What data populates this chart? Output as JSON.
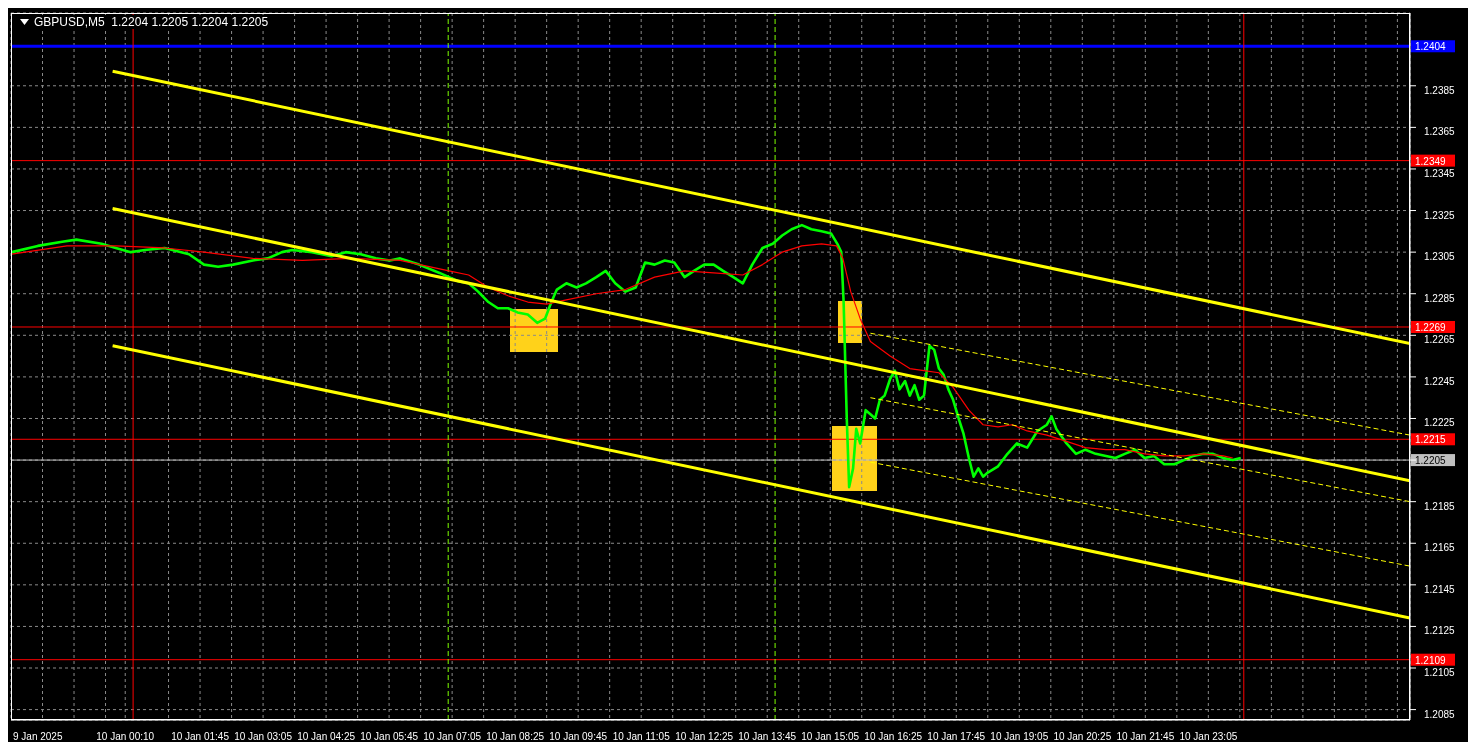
{
  "chart_data": {
    "type": "line",
    "title": "GBPUSD,M5  1.2204 1.2205 1.2204 1.2205",
    "xlim": [
      "2025-01-09T21:45",
      "2025-01-11T03:21"
    ],
    "ylim": [
      1.208,
      1.242
    ],
    "xticks": [
      {
        "value": "2025-01-09T21:45",
        "label": "9 Jan 2025"
      },
      {
        "value": "2025-01-09T22:25",
        "label": null
      },
      {
        "value": "2025-01-09T23:05",
        "label": null
      },
      {
        "value": "2025-01-09T23:45",
        "label": null
      },
      {
        "value": "2025-01-10T00:10",
        "label": "10 Jan 00:10"
      },
      {
        "value": "2025-01-10T01:05",
        "label": null
      },
      {
        "value": "2025-01-10T01:45",
        "label": "10 Jan 01:45"
      },
      {
        "value": "2025-01-10T02:25",
        "label": null
      },
      {
        "value": "2025-01-10T03:05",
        "label": "10 Jan 03:05"
      },
      {
        "value": "2025-01-10T03:45",
        "label": null
      },
      {
        "value": "2025-01-10T04:25",
        "label": "10 Jan 04:25"
      },
      {
        "value": "2025-01-10T05:05",
        "label": null
      },
      {
        "value": "2025-01-10T05:45",
        "label": "10 Jan 05:45"
      },
      {
        "value": "2025-01-10T06:25",
        "label": null
      },
      {
        "value": "2025-01-10T07:05",
        "label": "10 Jan 07:05"
      },
      {
        "value": "2025-01-10T07:45",
        "label": null
      },
      {
        "value": "2025-01-10T08:25",
        "label": "10 Jan 08:25"
      },
      {
        "value": "2025-01-10T09:05",
        "label": null
      },
      {
        "value": "2025-01-10T09:45",
        "label": "10 Jan 09:45"
      },
      {
        "value": "2025-01-10T10:25",
        "label": null
      },
      {
        "value": "2025-01-10T11:05",
        "label": "10 Jan 11:05"
      },
      {
        "value": "2025-01-10T11:45",
        "label": null
      },
      {
        "value": "2025-01-10T12:25",
        "label": "10 Jan 12:25"
      },
      {
        "value": "2025-01-10T13:05",
        "label": null
      },
      {
        "value": "2025-01-10T13:45",
        "label": "10 Jan 13:45"
      },
      {
        "value": "2025-01-10T14:25",
        "label": null
      },
      {
        "value": "2025-01-10T15:05",
        "label": "10 Jan 15:05"
      },
      {
        "value": "2025-01-10T15:45",
        "label": null
      },
      {
        "value": "2025-01-10T16:25",
        "label": "10 Jan 16:25"
      },
      {
        "value": "2025-01-10T17:05",
        "label": null
      },
      {
        "value": "2025-01-10T17:45",
        "label": "10 Jan 17:45"
      },
      {
        "value": "2025-01-10T18:25",
        "label": null
      },
      {
        "value": "2025-01-10T19:05",
        "label": "10 Jan 19:05"
      },
      {
        "value": "2025-01-10T19:45",
        "label": null
      },
      {
        "value": "2025-01-10T20:25",
        "label": "10 Jan 20:25"
      },
      {
        "value": "2025-01-10T21:05",
        "label": null
      },
      {
        "value": "2025-01-10T21:45",
        "label": "10 Jan 21:45"
      },
      {
        "value": "2025-01-10T22:25",
        "label": null
      },
      {
        "value": "2025-01-10T23:05",
        "label": "10 Jan 23:05"
      },
      {
        "value": "2025-01-10T23:45",
        "label": null
      },
      {
        "value": "2025-01-11T00:25",
        "label": null
      },
      {
        "value": "2025-01-11T01:05",
        "label": null
      },
      {
        "value": "2025-01-11T01:45",
        "label": null
      },
      {
        "value": "2025-01-11T02:25",
        "label": null
      },
      {
        "value": "2025-01-11T03:05",
        "label": null
      }
    ],
    "yticks": [
      1.2085,
      1.2105,
      1.2125,
      1.2145,
      1.2165,
      1.2185,
      {
        "value": 1.2205,
        "label": null
      },
      1.2225,
      1.2245,
      1.2265,
      1.2285,
      1.2305,
      1.2325,
      1.2345,
      1.2365,
      1.2385
    ],
    "grid": true,
    "series": [
      {
        "color": "#00ff00",
        "x": [
          "2025-01-09T21:46",
          "2025-01-09T22:19",
          "2025-01-09T22:50",
          "2025-01-09T23:08",
          "2025-01-09T23:40",
          "2025-01-09T23:58",
          "2025-01-10T00:17",
          "2025-01-10T00:35",
          "2025-01-10T01:00",
          "2025-01-10T01:31",
          "2025-01-10T01:50",
          "2025-01-10T02:08",
          "2025-01-10T02:27",
          "2025-01-10T02:52",
          "2025-01-10T03:11",
          "2025-01-10T03:29",
          "2025-01-10T03:42",
          "2025-01-10T04:07",
          "2025-01-10T04:32",
          "2025-01-10T04:50",
          "2025-01-10T05:09",
          "2025-01-10T05:28",
          "2025-01-10T05:46",
          "2025-01-10T05:59",
          "2025-01-10T06:23",
          "2025-01-10T06:49",
          "2025-01-10T07:01",
          "2025-01-10T07:13",
          "2025-01-10T07:26",
          "2025-01-10T07:38",
          "2025-01-10T07:51",
          "2025-01-10T08:03",
          "2025-01-10T08:16",
          "2025-01-10T08:28",
          "2025-01-10T08:41",
          "2025-01-10T08:53",
          "2025-01-10T09:03",
          "2025-01-10T09:11",
          "2025-01-10T09:18",
          "2025-01-10T09:30",
          "2025-01-10T09:43",
          "2025-01-10T09:55",
          "2025-01-10T10:08",
          "2025-01-10T10:20",
          "2025-01-10T10:32",
          "2025-01-10T10:45",
          "2025-01-10T10:58",
          "2025-01-10T11:10",
          "2025-01-10T11:22",
          "2025-01-10T11:35",
          "2025-01-10T11:47",
          "2025-01-10T12:00",
          "2025-01-10T12:12",
          "2025-01-10T12:25",
          "2025-01-10T12:37",
          "2025-01-10T12:49",
          "2025-01-10T13:02",
          "2025-01-10T13:14",
          "2025-01-10T13:26",
          "2025-01-10T13:39",
          "2025-01-10T13:52",
          "2025-01-10T14:04",
          "2025-01-10T14:16",
          "2025-01-10T14:29",
          "2025-01-10T14:41",
          "2025-01-10T14:54",
          "2025-01-10T15:06",
          "2025-01-10T15:14",
          "2025-01-10T15:19",
          "2025-01-10T15:22",
          "2025-01-10T15:26",
          "2025-01-10T15:29",
          "2025-01-10T15:34",
          "2025-01-10T15:38",
          "2025-01-10T15:43",
          "2025-01-10T15:50",
          "2025-01-10T15:56",
          "2025-01-10T16:02",
          "2025-01-10T16:08",
          "2025-01-10T16:14",
          "2025-01-10T16:21",
          "2025-01-10T16:27",
          "2025-01-10T16:33",
          "2025-01-10T16:40",
          "2025-01-10T16:46",
          "2025-01-10T16:52",
          "2025-01-10T16:58",
          "2025-01-10T17:04",
          "2025-01-10T17:11",
          "2025-01-10T17:17",
          "2025-01-10T17:23",
          "2025-01-10T17:29",
          "2025-01-10T17:35",
          "2025-01-10T17:41",
          "2025-01-10T17:48",
          "2025-01-10T17:54",
          "2025-01-10T18:01",
          "2025-01-10T18:07",
          "2025-01-10T18:13",
          "2025-01-10T18:19",
          "2025-01-10T18:25",
          "2025-01-10T18:38",
          "2025-01-10T18:50",
          "2025-01-10T19:02",
          "2025-01-10T19:15",
          "2025-01-10T19:28",
          "2025-01-10T19:40",
          "2025-01-10T19:46",
          "2025-01-10T19:52",
          "2025-01-10T20:05",
          "2025-01-10T20:17",
          "2025-01-10T20:29",
          "2025-01-10T20:42",
          "2025-01-10T20:55",
          "2025-01-10T21:07",
          "2025-01-10T21:19",
          "2025-01-10T21:32",
          "2025-01-10T21:44",
          "2025-01-10T21:56",
          "2025-01-10T22:09",
          "2025-01-10T22:22",
          "2025-01-10T22:34",
          "2025-01-10T22:46",
          "2025-01-10T22:59",
          "2025-01-10T23:11",
          "2025-01-10T23:24",
          "2025-01-10T23:36",
          "2025-01-10T23:46"
        ],
        "values": [
          1.2305,
          1.2308,
          1.231,
          1.2311,
          1.2309,
          1.2307,
          1.2305,
          1.2306,
          1.2307,
          1.2304,
          1.2299,
          1.2298,
          1.2299,
          1.2301,
          1.2302,
          1.2305,
          1.2306,
          1.2305,
          1.2303,
          1.2305,
          1.2304,
          1.2302,
          1.2301,
          1.2302,
          1.2299,
          1.2295,
          1.2293,
          1.2291,
          1.229,
          1.2286,
          1.2281,
          1.2278,
          1.2278,
          1.2276,
          1.2275,
          1.2271,
          1.2273,
          1.2281,
          1.2287,
          1.229,
          1.2288,
          1.229,
          1.2293,
          1.2296,
          1.229,
          1.2286,
          1.2288,
          1.23,
          1.2299,
          1.2301,
          1.23,
          1.2293,
          1.2296,
          1.2299,
          1.2299,
          1.2296,
          1.2293,
          1.229,
          1.2299,
          1.2307,
          1.2309,
          1.2313,
          1.2316,
          1.2318,
          1.2316,
          1.2315,
          1.2314,
          1.2309,
          1.2305,
          1.2281,
          1.2225,
          1.2192,
          1.2201,
          1.222,
          1.2213,
          1.2229,
          1.2227,
          1.2225,
          1.2234,
          1.2236,
          1.2244,
          1.2248,
          1.2239,
          1.2243,
          1.2236,
          1.2241,
          1.2234,
          1.2236,
          1.226,
          1.2258,
          1.2249,
          1.2246,
          1.2239,
          1.2234,
          1.2225,
          1.2218,
          1.2206,
          1.2197,
          1.2201,
          1.2197,
          1.2199,
          1.2202,
          1.2208,
          1.2213,
          1.2211,
          1.2219,
          1.2222,
          1.2226,
          1.222,
          1.2213,
          1.2208,
          1.221,
          1.2208,
          1.2207,
          1.2206,
          1.2208,
          1.221,
          1.2206,
          1.2207,
          1.2203,
          1.2203,
          1.2205,
          1.2207,
          1.2208,
          1.2208,
          1.2206,
          1.2205,
          1.2206
        ]
      },
      {
        "color": "#ff0000",
        "x": [
          "2025-01-09T21:46",
          "2025-01-09T22:56",
          "2025-01-09T23:58",
          "2025-01-10T01:00",
          "2025-01-10T01:50",
          "2025-01-10T02:52",
          "2025-01-10T03:55",
          "2025-01-10T04:56",
          "2025-01-10T05:59",
          "2025-01-10T07:01",
          "2025-01-10T07:26",
          "2025-01-10T07:51",
          "2025-01-10T08:16",
          "2025-01-10T08:41",
          "2025-01-10T09:05",
          "2025-01-10T09:30",
          "2025-01-10T10:08",
          "2025-01-10T10:45",
          "2025-01-10T11:22",
          "2025-01-10T12:00",
          "2025-01-10T12:37",
          "2025-01-10T13:14",
          "2025-01-10T13:39",
          "2025-01-10T14:04",
          "2025-01-10T14:29",
          "2025-01-10T14:54",
          "2025-01-10T15:13",
          "2025-01-10T15:21",
          "2025-01-10T15:31",
          "2025-01-10T15:43",
          "2025-01-10T15:56",
          "2025-01-10T16:21",
          "2025-01-10T16:46",
          "2025-01-10T17:04",
          "2025-01-10T17:23",
          "2025-01-10T17:41",
          "2025-01-10T18:01",
          "2025-01-10T18:19",
          "2025-01-10T18:38",
          "2025-01-10T18:56",
          "2025-01-10T19:15",
          "2025-01-10T19:40",
          "2025-01-10T20:05",
          "2025-01-10T20:29",
          "2025-01-10T20:55",
          "2025-01-10T21:19",
          "2025-01-10T21:44",
          "2025-01-10T22:09",
          "2025-01-10T22:34",
          "2025-01-10T22:59",
          "2025-01-10T23:24",
          "2025-01-10T23:36"
        ],
        "values": [
          1.2304,
          1.2308,
          1.2308,
          1.2307,
          1.2305,
          1.2302,
          1.2301,
          1.2302,
          1.2301,
          1.2296,
          1.2294,
          1.2288,
          1.2284,
          1.2281,
          1.228,
          1.2282,
          1.2285,
          1.2287,
          1.2293,
          1.2296,
          1.2295,
          1.2294,
          1.2299,
          1.2305,
          1.2308,
          1.2309,
          1.2308,
          1.2302,
          1.2286,
          1.2273,
          1.2262,
          1.2255,
          1.2249,
          1.2248,
          1.2247,
          1.224,
          1.2229,
          1.2222,
          1.2221,
          1.2222,
          1.2219,
          1.2217,
          1.2214,
          1.2211,
          1.221,
          1.221,
          1.2208,
          1.2207,
          1.2207,
          1.2208,
          1.2207,
          1.2206
        ]
      },
      {
        "color": "#ffff00",
        "x": [
          "2025-01-09T23:54",
          "2025-01-11T03:21"
        ],
        "values": [
          1.2392,
          1.2261
        ]
      },
      {
        "color": "#ffff00",
        "x": [
          "2025-01-09T23:54",
          "2025-01-11T03:21"
        ],
        "values": [
          1.2326,
          1.2195
        ]
      },
      {
        "color": "#ffff00",
        "x": [
          "2025-01-09T23:54",
          "2025-01-11T03:21"
        ],
        "values": [
          1.226,
          1.2129
        ]
      },
      {
        "color": "#ffff00",
        "line_style": "dashed",
        "x": [
          "2025-01-10T15:56",
          "2025-01-11T03:21"
        ],
        "values": [
          1.2266,
          1.2217
        ]
      },
      {
        "color": "#ffff00",
        "line_style": "dashed",
        "x": [
          "2025-01-10T15:56",
          "2025-01-11T03:21"
        ],
        "values": [
          1.2235,
          1.2185
        ]
      },
      {
        "color": "#ffff00",
        "line_style": "dashed",
        "x": [
          "2025-01-10T15:56",
          "2025-01-11T03:21"
        ],
        "values": [
          1.2204,
          1.2154
        ]
      }
    ],
    "ref_lines": [
      {
        "axis": "y",
        "value": 1.2404,
        "label": "1.2404",
        "color": "#0000ff"
      },
      {
        "axis": "y",
        "value": 1.2349,
        "label": "1.2349",
        "color": "#ff0000"
      },
      {
        "axis": "y",
        "value": 1.2269,
        "label": "1.2269",
        "color": "#ff0000"
      },
      {
        "axis": "y",
        "value": 1.2215,
        "label": "1.2215",
        "color": "#ff0000"
      },
      {
        "axis": "y",
        "value": 1.2205,
        "label": "1.2205",
        "color": "#c0c0c0"
      },
      {
        "axis": "y",
        "value": 1.2109,
        "label": "1.2109",
        "color": "#ff0000"
      },
      {
        "axis": "x",
        "value": "2025-01-10T00:20",
        "color": "#ff0000"
      },
      {
        "axis": "x",
        "value": "2025-01-10T23:50",
        "color": "#ff0000"
      },
      {
        "axis": "x",
        "value": "2025-01-10T07:00",
        "color": "#7fff00",
        "line_style": "dashed"
      },
      {
        "axis": "x",
        "value": "2025-01-10T13:55",
        "color": "#7fff00",
        "line_style": "dashed"
      }
    ]
  }
}
